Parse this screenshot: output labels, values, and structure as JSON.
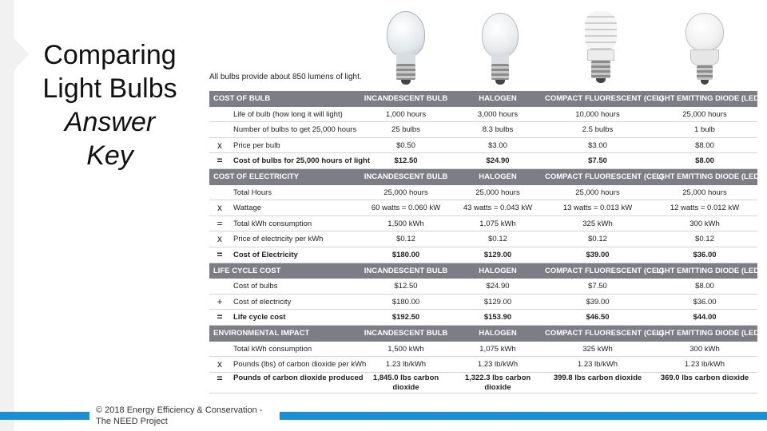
{
  "slide": {
    "title_lines": [
      "Comparing",
      "Light Bulbs"
    ],
    "subtitle_lines": [
      "Answer",
      "Key"
    ],
    "footer": "© 2018 Energy Efficiency & Conservation - The NEED Project",
    "accent": "#1a8fd6"
  },
  "table": {
    "note": "All bulbs provide about 850 lumens of light.",
    "sections": [
      {
        "header": [
          "COST OF BULB",
          "INCANDESCENT BULB",
          "HALOGEN",
          "COMPACT FLUORESCENT (CFL)",
          "LIGHT EMITTING DIODE (LED)"
        ],
        "rows": [
          {
            "op": "",
            "label": "Life of bulb (how long it will light)",
            "values": [
              "1,000 hours",
              "3,000 hours",
              "10,000 hours",
              "25,000 hours"
            ]
          },
          {
            "op": "",
            "label": "Number of bulbs to get 25,000 hours",
            "values": [
              "25 bulbs",
              "8.3 bulbs",
              "2.5 bulbs",
              "1 bulb"
            ]
          },
          {
            "op": "x",
            "label": "Price per bulb",
            "values": [
              "$0.50",
              "$3.00",
              "$3.00",
              "$8.00"
            ]
          },
          {
            "op": "=",
            "label": "Cost of bulbs for 25,000 hours of light",
            "values": [
              "$12.50",
              "$24.90",
              "$7.50",
              "$8.00"
            ],
            "total": true
          }
        ]
      },
      {
        "header": [
          "COST OF ELECTRICITY",
          "INCANDESCENT BULB",
          "HALOGEN",
          "COMPACT FLUORESCENT (CFL)",
          "LIGHT EMITTING DIODE (LED)"
        ],
        "rows": [
          {
            "op": "",
            "label": "Total Hours",
            "values": [
              "25,000 hours",
              "25,000 hours",
              "25,000 hours",
              "25,000 hours"
            ]
          },
          {
            "op": "x",
            "label": "Wattage",
            "values": [
              "60 watts = 0.060 kW",
              "43 watts = 0.043 kW",
              "13 watts = 0.013 kW",
              "12 watts = 0.012 kW"
            ]
          },
          {
            "op": "=",
            "label": "Total kWh consumption",
            "values": [
              "1,500 kWh",
              "1,075 kWh",
              "325 kWh",
              "300 kWh"
            ]
          },
          {
            "op": "x",
            "label": "Price of electricity per kWh",
            "values": [
              "$0.12",
              "$0.12",
              "$0.12",
              "$0.12"
            ]
          },
          {
            "op": "=",
            "label": "Cost of Electricity",
            "values": [
              "$180.00",
              "$129.00",
              "$39.00",
              "$36.00"
            ],
            "total": true
          }
        ]
      },
      {
        "header": [
          "LIFE CYCLE COST",
          "INCANDESCENT BULB",
          "HALOGEN",
          "COMPACT FLUORESCENT (CFL)",
          "LIGHT EMITTING DIODE (LED)"
        ],
        "rows": [
          {
            "op": "",
            "label": "Cost of bulbs",
            "values": [
              "$12.50",
              "$24.90",
              "$7.50",
              "$8.00"
            ]
          },
          {
            "op": "+",
            "label": "Cost of electricity",
            "values": [
              "$180.00",
              "$129.00",
              "$39.00",
              "$36.00"
            ]
          },
          {
            "op": "=",
            "label": "Life cycle cost",
            "values": [
              "$192.50",
              "$153.90",
              "$46.50",
              "$44.00"
            ],
            "total": true
          }
        ]
      },
      {
        "header": [
          "ENVIRONMENTAL IMPACT",
          "INCANDESCENT BULB",
          "HALOGEN",
          "COMPACT FLUORESCENT (CFL)",
          "LIGHT EMITTING DIODE (LED)"
        ],
        "rows": [
          {
            "op": "",
            "label": "Total kWh consumption",
            "values": [
              "1,500 kWh",
              "1,075 kWh",
              "325 kWh",
              "300 kWh"
            ]
          },
          {
            "op": "x",
            "label": "Pounds (lbs) of carbon dioxide per kWh",
            "values": [
              "1.23 lb/kWh",
              "1.23 lb/kWh",
              "1.23 lb/kWh",
              "1.23 lb/kWh"
            ]
          },
          {
            "op": "=",
            "label": "Pounds of carbon dioxide produced",
            "values": [
              "1,845.0 lbs carbon dioxide",
              "1,322.3 lbs carbon dioxide",
              "399.8 lbs carbon dioxide",
              "369.0 lbs carbon dioxide"
            ],
            "total": true,
            "tall": true
          }
        ]
      }
    ]
  },
  "bulb_icons": [
    "incandescent-bulb-icon",
    "halogen-bulb-icon",
    "cfl-bulb-icon",
    "led-bulb-icon"
  ]
}
